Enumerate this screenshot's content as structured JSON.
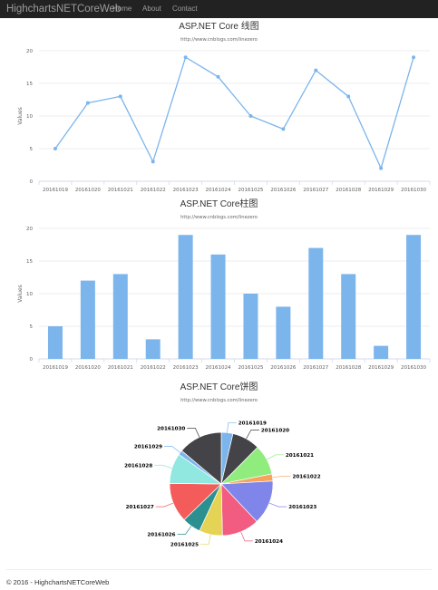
{
  "navbar": {
    "brand": "HighchartsNETCoreWeb",
    "links": [
      "Home",
      "About",
      "Contact"
    ]
  },
  "footer": {
    "text": "© 2016 - HighchartsNETCoreWeb"
  },
  "chart_data": [
    {
      "type": "line",
      "title": "ASP.NET Core 线图",
      "subtitle": "http://www.cnblogs.com/linezero",
      "ylabel": "Values",
      "xlabel": "",
      "ylim": [
        0,
        20
      ],
      "yticks": [
        0,
        5,
        10,
        15,
        20
      ],
      "categories": [
        "20161019",
        "20161020",
        "20161021",
        "20161022",
        "20161023",
        "20161024",
        "20161025",
        "20161026",
        "20161027",
        "20161028",
        "20161029",
        "20161030"
      ],
      "values": [
        5,
        12,
        13,
        3,
        19,
        16,
        10,
        8,
        17,
        13,
        2,
        19
      ],
      "color": "#7cb5ec",
      "grid": true,
      "legend": "none"
    },
    {
      "type": "bar",
      "title": "ASP.NET Core柱图",
      "subtitle": "http://www.cnblogs.com/linezero",
      "ylabel": "Values",
      "xlabel": "",
      "ylim": [
        0,
        20
      ],
      "yticks": [
        0,
        5,
        10,
        15,
        20
      ],
      "categories": [
        "20161019",
        "20161020",
        "20161021",
        "20161022",
        "20161023",
        "20161024",
        "20161025",
        "20161026",
        "20161027",
        "20161028",
        "20161029",
        "20161030"
      ],
      "values": [
        5,
        12,
        13,
        3,
        19,
        16,
        10,
        8,
        17,
        13,
        2,
        19
      ],
      "color": "#7cb5ec",
      "grid": true,
      "legend": "none"
    },
    {
      "type": "pie",
      "title": "ASP.NET Core饼图",
      "subtitle": "http://www.cnblogs.com/linezero",
      "categories": [
        "20161019",
        "20161020",
        "20161021",
        "20161022",
        "20161023",
        "20161024",
        "20161025",
        "20161026",
        "20161027",
        "20161028",
        "20161029",
        "20161030"
      ],
      "values": [
        5,
        12,
        13,
        3,
        19,
        16,
        10,
        8,
        17,
        13,
        2,
        19
      ],
      "colors": [
        "#7cb5ec",
        "#434348",
        "#90ed7d",
        "#f7a35c",
        "#8085e9",
        "#f15c80",
        "#e4d354",
        "#2b908f",
        "#f45b5b",
        "#91e8e1",
        "#7cb5ec",
        "#434348"
      ]
    }
  ]
}
